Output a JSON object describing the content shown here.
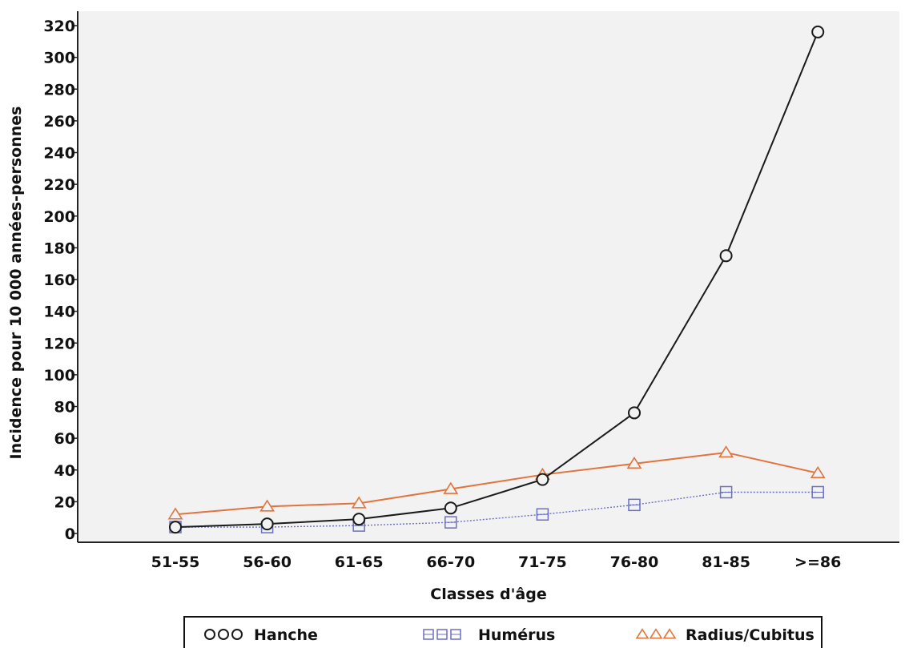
{
  "chart_data": {
    "type": "line",
    "title": "",
    "xlabel": "Classes d'âge",
    "ylabel": "Incidence pour 10 000 années-personnes",
    "categories": [
      "51-55",
      "56-60",
      "61-65",
      "66-70",
      "71-75",
      "76-80",
      "81-85",
      ">=86"
    ],
    "ylim": [
      0,
      320
    ],
    "yticks": [
      0,
      20,
      40,
      60,
      80,
      100,
      120,
      140,
      160,
      180,
      200,
      220,
      240,
      260,
      280,
      300,
      320
    ],
    "grid": false,
    "legend_position": "bottom",
    "series": [
      {
        "name": "Hanche",
        "marker": "circle",
        "line_style": "solid",
        "color": "#1a1a1a",
        "values": [
          4,
          6,
          9,
          16,
          34,
          76,
          175,
          316
        ]
      },
      {
        "name": "Humérus",
        "marker": "square",
        "line_style": "dotted",
        "color": "#6b6fc4",
        "values": [
          4,
          4,
          5,
          7,
          12,
          18,
          26,
          26
        ]
      },
      {
        "name": "Radius/Cubitus",
        "marker": "triangle",
        "line_style": "solid",
        "color": "#e0743c",
        "values": [
          12,
          17,
          19,
          28,
          37,
          44,
          51,
          38
        ]
      }
    ]
  }
}
